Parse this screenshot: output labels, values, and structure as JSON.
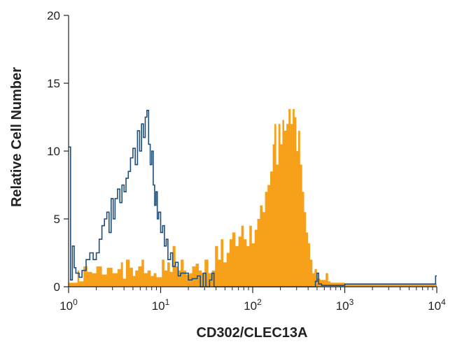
{
  "chart_data": {
    "type": "area",
    "title": "",
    "xlabel": "CD302/CLEC13A",
    "ylabel": "Relative Cell Number",
    "xscale": "log",
    "xlim": [
      1,
      10000
    ],
    "ylim": [
      0,
      20
    ],
    "x_ticks": [
      {
        "value": 1,
        "base": "10",
        "exp": "0"
      },
      {
        "value": 10,
        "base": "10",
        "exp": "1"
      },
      {
        "value": 100,
        "base": "10",
        "exp": "2"
      },
      {
        "value": 1000,
        "base": "10",
        "exp": "3"
      },
      {
        "value": 10000,
        "base": "10",
        "exp": "4"
      }
    ],
    "y_ticks": [
      "0",
      "5",
      "10",
      "15",
      "20"
    ],
    "grid": false,
    "legend": "none",
    "series": [
      {
        "style": "filled",
        "color": "#f7a11a",
        "points": [
          [
            1.0,
            0.3
          ],
          [
            1.15,
            0.3
          ],
          [
            1.25,
            1.2
          ],
          [
            1.3,
            0.4
          ],
          [
            1.45,
            1.5
          ],
          [
            1.6,
            1.1
          ],
          [
            1.8,
            1.0
          ],
          [
            2.0,
            1.5
          ],
          [
            2.3,
            0.9
          ],
          [
            2.6,
            1.4
          ],
          [
            3.0,
            1.0
          ],
          [
            3.4,
            1.3
          ],
          [
            3.7,
            1.8
          ],
          [
            3.9,
            0.6
          ],
          [
            4.2,
            2.0
          ],
          [
            4.6,
            1.4
          ],
          [
            5.0,
            0.8
          ],
          [
            5.3,
            1.2
          ],
          [
            5.7,
            1.5
          ],
          [
            6.2,
            2.0
          ],
          [
            6.6,
            1.0
          ],
          [
            7.2,
            1.2
          ],
          [
            7.8,
            0.8
          ],
          [
            8.4,
            1.0
          ],
          [
            9.0,
            0.7
          ],
          [
            9.6,
            0.7
          ],
          [
            10.3,
            2.0
          ],
          [
            11.0,
            1.2
          ],
          [
            11.8,
            1.8
          ],
          [
            12.6,
            1.1
          ],
          [
            13.5,
            3.0
          ],
          [
            14.5,
            1.5
          ],
          [
            15.5,
            1.2
          ],
          [
            16.5,
            2.0
          ],
          [
            17.8,
            1.2
          ],
          [
            19.0,
            0.9
          ],
          [
            20.5,
            1.0
          ],
          [
            22.0,
            1.5
          ],
          [
            24.0,
            1.7
          ],
          [
            26.0,
            1.2
          ],
          [
            28.0,
            1.0
          ],
          [
            30.0,
            2.0
          ],
          [
            33.0,
            1.0
          ],
          [
            36.0,
            1.2
          ],
          [
            39.0,
            3.0
          ],
          [
            42.0,
            2.0
          ],
          [
            45.0,
            3.5
          ],
          [
            48.0,
            1.8
          ],
          [
            52.0,
            2.5
          ],
          [
            56.0,
            3.5
          ],
          [
            60.0,
            4.0
          ],
          [
            65.0,
            3.0
          ],
          [
            70.0,
            3.7
          ],
          [
            75.0,
            4.5
          ],
          [
            80.0,
            3.5
          ],
          [
            86.0,
            3.0
          ],
          [
            92.0,
            4.5
          ],
          [
            98.0,
            3.2
          ],
          [
            105.0,
            4.2
          ],
          [
            112.0,
            5.0
          ],
          [
            120.0,
            6.0
          ],
          [
            128.0,
            5.5
          ],
          [
            136.0,
            7.0
          ],
          [
            145.0,
            7.5
          ],
          [
            155.0,
            8.5
          ],
          [
            165.0,
            10.5
          ],
          [
            172.0,
            12.0
          ],
          [
            180.0,
            9.0
          ],
          [
            190.0,
            12.0
          ],
          [
            200.0,
            10.5
          ],
          [
            210.0,
            12.3
          ],
          [
            220.0,
            11.5
          ],
          [
            232.0,
            12.0
          ],
          [
            245.0,
            13.1
          ],
          [
            258.0,
            12.0
          ],
          [
            272.0,
            13.1
          ],
          [
            285.0,
            12.5
          ],
          [
            298.0,
            10.0
          ],
          [
            312.0,
            11.5
          ],
          [
            328.0,
            9.0
          ],
          [
            345.0,
            7.0
          ],
          [
            362.0,
            5.5
          ],
          [
            380.0,
            4.0
          ],
          [
            400.0,
            3.2
          ],
          [
            420.0,
            2.0
          ],
          [
            445.0,
            1.0
          ],
          [
            470.0,
            1.3
          ],
          [
            500.0,
            0.6
          ],
          [
            540.0,
            0.5
          ],
          [
            580.0,
            0.5
          ],
          [
            620.0,
            1.0
          ],
          [
            660.0,
            0.4
          ],
          [
            700.0,
            0.3
          ],
          [
            1000.0,
            0.2
          ],
          [
            3000.0,
            0.2
          ],
          [
            9500.0,
            0.2
          ]
        ]
      },
      {
        "style": "outline",
        "color": "#1f4e79",
        "points": [
          [
            1.0,
            10.3
          ],
          [
            1.05,
            0.5
          ],
          [
            1.1,
            3.0
          ],
          [
            1.15,
            1.4
          ],
          [
            1.2,
            1.0
          ],
          [
            1.3,
            0.7
          ],
          [
            1.4,
            1.2
          ],
          [
            1.55,
            2.0
          ],
          [
            1.7,
            2.5
          ],
          [
            1.85,
            2.0
          ],
          [
            2.0,
            2.5
          ],
          [
            2.15,
            3.5
          ],
          [
            2.3,
            4.5
          ],
          [
            2.45,
            5.0
          ],
          [
            2.6,
            5.5
          ],
          [
            2.75,
            4.0
          ],
          [
            2.9,
            6.5
          ],
          [
            3.05,
            5.0
          ],
          [
            3.2,
            6.5
          ],
          [
            3.4,
            7.2
          ],
          [
            3.6,
            6.2
          ],
          [
            3.8,
            7.5
          ],
          [
            4.0,
            7.0
          ],
          [
            4.2,
            8.0
          ],
          [
            4.45,
            8.5
          ],
          [
            4.7,
            9.5
          ],
          [
            5.0,
            10.2
          ],
          [
            5.3,
            9.0
          ],
          [
            5.6,
            11.5
          ],
          [
            5.9,
            10.0
          ],
          [
            6.2,
            12.0
          ],
          [
            6.5,
            11.0
          ],
          [
            6.8,
            12.5
          ],
          [
            7.1,
            13.0
          ],
          [
            7.4,
            10.5
          ],
          [
            7.7,
            9.0
          ],
          [
            8.0,
            10.0
          ],
          [
            8.3,
            7.5
          ],
          [
            8.6,
            6.0
          ],
          [
            8.9,
            7.0
          ],
          [
            9.2,
            5.0
          ],
          [
            9.5,
            5.5
          ],
          [
            10.0,
            4.0
          ],
          [
            10.5,
            4.5
          ],
          [
            11.0,
            3.0
          ],
          [
            11.5,
            3.5
          ],
          [
            12.0,
            2.0
          ],
          [
            12.8,
            2.5
          ],
          [
            13.5,
            1.5
          ],
          [
            14.5,
            1.8
          ],
          [
            15.5,
            0.8
          ],
          [
            16.5,
            1.0
          ],
          [
            18.0,
            1.0
          ],
          [
            20.0,
            0.5
          ],
          [
            22.0,
            0.6
          ],
          [
            25.0,
            0.8
          ],
          [
            27.0,
            0.0
          ],
          [
            29.0,
            1.0
          ],
          [
            31.0,
            0.0
          ],
          [
            34.0,
            0.5
          ],
          [
            36.0,
            1.0
          ],
          [
            38.0,
            0.0
          ],
          [
            100.0,
            0.0
          ],
          [
            300.0,
            0.0
          ],
          [
            480.0,
            0.4
          ],
          [
            500.0,
            1.0
          ],
          [
            520.0,
            0.2
          ],
          [
            560.0,
            0.1
          ],
          [
            1000.0,
            0.2
          ],
          [
            9000.0,
            0.2
          ],
          [
            9700.0,
            0.8
          ],
          [
            10000.0,
            0.8
          ]
        ]
      }
    ]
  }
}
